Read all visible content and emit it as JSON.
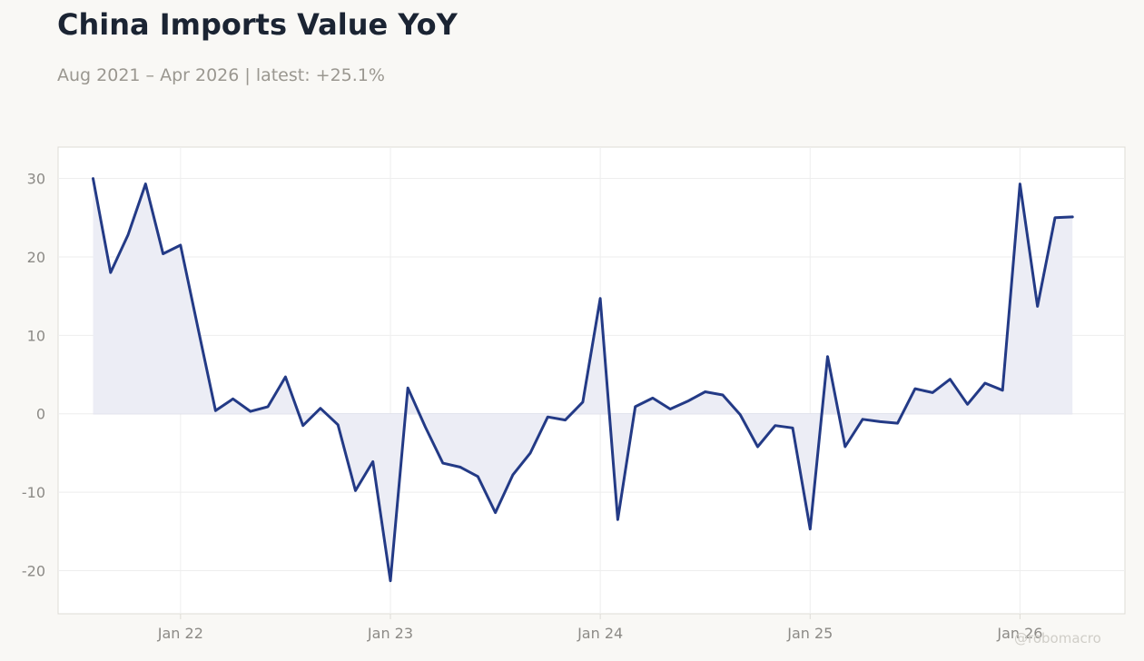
{
  "header": {
    "title": "China Imports Value YoY",
    "subtitle": "Aug 2021 – Apr 2026 | latest: +25.1%"
  },
  "watermark": "@robomacro",
  "chart_data": {
    "type": "area",
    "title": "China Imports Value YoY",
    "subtitle": "Aug 2021 – Apr 2026 | latest: +25.1%",
    "xlabel": "",
    "ylabel": "",
    "ylim": [
      -25.5,
      34
    ],
    "yticks": [
      -20,
      -10,
      0,
      10,
      20,
      30
    ],
    "xticks": [
      {
        "label": "Jan 22",
        "date": "2022-01"
      },
      {
        "label": "Jan 23",
        "date": "2023-01"
      },
      {
        "label": "Jan 24",
        "date": "2024-01"
      },
      {
        "label": "Jan 25",
        "date": "2025-01"
      },
      {
        "label": "Jan 26",
        "date": "2026-01"
      }
    ],
    "xrange": [
      "2021-06",
      "2026-07"
    ],
    "grid": true,
    "colors": {
      "line": "#233a86",
      "fill": "#ecedf5",
      "grid": "#eeeeee",
      "background": "#ffffff",
      "axis": "#dedcd6"
    },
    "series": [
      {
        "x": [
          "2021-08",
          "2021-09",
          "2021-10",
          "2021-11",
          "2021-12",
          "2022-01",
          "2022-02",
          "2022-03",
          "2022-04",
          "2022-05",
          "2022-06",
          "2022-07",
          "2022-08",
          "2022-09",
          "2022-10",
          "2022-11",
          "2022-12",
          "2023-01",
          "2023-02",
          "2023-03",
          "2023-04",
          "2023-05",
          "2023-06",
          "2023-07",
          "2023-08",
          "2023-09",
          "2023-10",
          "2023-11",
          "2023-12",
          "2024-01",
          "2024-02",
          "2024-03",
          "2024-04",
          "2024-05",
          "2024-06",
          "2024-07",
          "2024-08",
          "2024-09",
          "2024-10",
          "2024-11",
          "2024-12",
          "2025-01",
          "2025-02",
          "2025-03",
          "2025-04",
          "2025-05",
          "2025-06",
          "2025-07",
          "2025-08",
          "2025-09",
          "2025-10",
          "2025-11",
          "2025-12",
          "2026-01",
          "2026-02",
          "2026-03",
          "2026-04"
        ],
        "values": [
          30.0,
          18.0,
          22.8,
          29.3,
          20.4,
          21.5,
          10.9,
          0.4,
          1.9,
          0.3,
          0.9,
          4.7,
          -1.5,
          0.7,
          -1.4,
          -9.8,
          -6.1,
          -21.3,
          3.3,
          -1.7,
          -6.3,
          -6.8,
          -8.0,
          -12.6,
          -7.8,
          -5.0,
          -0.4,
          -0.8,
          1.5,
          14.7,
          -13.5,
          0.9,
          2.0,
          0.6,
          1.6,
          2.8,
          2.4,
          -0.1,
          -4.2,
          -1.5,
          -1.8,
          -14.7,
          7.3,
          -4.2,
          -0.7,
          -1.0,
          -1.2,
          3.2,
          2.7,
          4.4,
          1.2,
          3.9,
          3.0,
          29.3,
          13.7,
          25.0,
          25.1
        ]
      }
    ]
  }
}
